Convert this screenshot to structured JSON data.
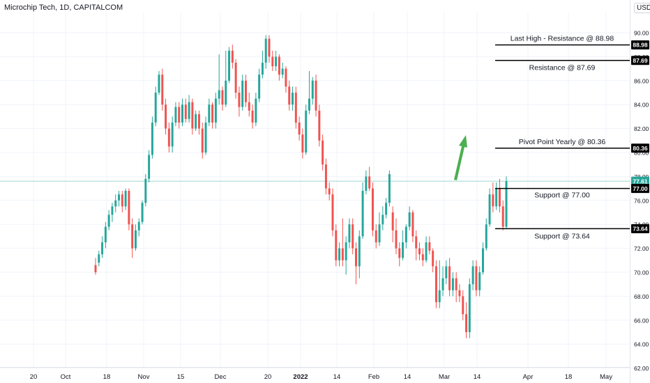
{
  "header": {
    "title": "Microchip Tech, 1D, CAPITALCOM",
    "currency": "USD"
  },
  "colors": {
    "up": "#26a69a",
    "down": "#ef5350",
    "grid": "#f0f3fa",
    "axis_text": "#131722",
    "current_line": "#26a69a",
    "annotation_line": "#000000",
    "arrow": "#4caf50"
  },
  "chart_data": {
    "type": "candlestick",
    "ylim": [
      61.5,
      91.5
    ],
    "y_ticks": [
      "90.00",
      "88.00",
      "86.00",
      "84.00",
      "82.00",
      "80.00",
      "78.00",
      "76.00",
      "74.00",
      "72.00",
      "70.00",
      "68.00",
      "66.00",
      "64.00",
      "62.00"
    ],
    "x_ticks": [
      "20",
      "Oct",
      "18",
      "Nov",
      "15",
      "Dec",
      "20",
      "2022",
      "14",
      "Feb",
      "14",
      "Mar",
      "14",
      "Apr",
      "18",
      "May"
    ],
    "current_price": 77.61,
    "price_labels": [
      "88.98",
      "87.69",
      "80.36",
      "77.61",
      "77.00",
      "73.64"
    ],
    "levels": [
      {
        "label": "Last High - Resistance @ 88.98",
        "value": 88.98,
        "tag": "88.98"
      },
      {
        "label": "Resistance @ 87.69",
        "value": 87.69,
        "tag": "87.69"
      },
      {
        "label": "Pivot Point Yearly @ 80.36",
        "value": 80.36,
        "tag": "80.36"
      },
      {
        "label": "Support @ 77.00",
        "value": 77.0,
        "tag": "77.00"
      },
      {
        "label": "Support @ 73.64",
        "value": 73.64,
        "tag": "73.64"
      }
    ],
    "candles": [
      [
        70.6,
        70.0,
        71.2,
        69.8
      ],
      [
        70.8,
        71.5,
        71.8,
        70.5
      ],
      [
        71.5,
        72.5,
        73.0,
        71.2
      ],
      [
        72.5,
        73.8,
        74.2,
        72.0
      ],
      [
        73.8,
        74.8,
        75.2,
        73.5
      ],
      [
        74.8,
        75.5,
        75.8,
        74.2
      ],
      [
        75.5,
        76.0,
        76.5,
        75.0
      ],
      [
        76.0,
        76.5,
        76.8,
        75.5
      ],
      [
        76.5,
        75.5,
        76.8,
        75.0
      ],
      [
        75.5,
        76.8,
        77.0,
        75.2
      ],
      [
        76.8,
        74.0,
        77.0,
        73.5
      ],
      [
        74.0,
        72.0,
        74.5,
        71.2
      ],
      [
        72.0,
        73.5,
        74.0,
        71.8
      ],
      [
        73.5,
        74.2,
        74.5,
        73.0
      ],
      [
        74.2,
        75.8,
        76.0,
        74.0
      ],
      [
        75.8,
        77.8,
        78.2,
        75.5
      ],
      [
        77.8,
        79.8,
        80.2,
        77.5
      ],
      [
        79.8,
        82.5,
        83.0,
        79.5
      ],
      [
        82.5,
        85.0,
        85.5,
        82.2
      ],
      [
        85.0,
        86.5,
        86.8,
        84.8
      ],
      [
        86.5,
        84.0,
        87.0,
        83.5
      ],
      [
        84.0,
        82.0,
        84.5,
        81.5
      ],
      [
        82.0,
        80.5,
        82.5,
        80.0
      ],
      [
        80.5,
        82.5,
        83.0,
        80.0
      ],
      [
        82.5,
        83.8,
        84.2,
        82.2
      ],
      [
        83.8,
        82.5,
        84.2,
        82.0
      ],
      [
        82.5,
        84.0,
        84.5,
        82.2
      ],
      [
        84.0,
        82.8,
        84.5,
        82.5
      ],
      [
        82.8,
        84.2,
        84.8,
        82.5
      ],
      [
        84.2,
        82.0,
        84.5,
        81.5
      ],
      [
        82.0,
        83.2,
        83.5,
        81.8
      ],
      [
        83.2,
        82.0,
        83.5,
        81.5
      ],
      [
        82.0,
        80.0,
        82.5,
        79.5
      ],
      [
        80.0,
        82.5,
        83.0,
        79.8
      ],
      [
        82.5,
        84.0,
        84.5,
        82.2
      ],
      [
        84.0,
        82.5,
        84.2,
        82.0
      ],
      [
        82.5,
        84.5,
        85.0,
        82.0
      ],
      [
        84.5,
        85.2,
        88.2,
        84.0
      ],
      [
        85.2,
        84.0,
        85.5,
        83.5
      ],
      [
        84.0,
        86.0,
        88.5,
        83.8
      ],
      [
        86.0,
        88.5,
        88.8,
        85.8
      ],
      [
        88.5,
        87.5,
        89.0,
        87.0
      ],
      [
        87.5,
        85.0,
        87.8,
        84.5
      ],
      [
        85.0,
        83.8,
        85.5,
        83.0
      ],
      [
        83.8,
        86.0,
        86.5,
        83.5
      ],
      [
        86.0,
        84.2,
        86.5,
        83.8
      ],
      [
        84.2,
        83.5,
        85.0,
        83.0
      ],
      [
        83.5,
        82.5,
        84.0,
        82.0
      ],
      [
        82.5,
        84.5,
        85.0,
        82.2
      ],
      [
        84.5,
        86.5,
        87.0,
        84.2
      ],
      [
        86.5,
        87.5,
        88.5,
        86.2
      ],
      [
        87.5,
        89.5,
        89.8,
        87.0
      ],
      [
        89.5,
        88.0,
        89.8,
        87.5
      ],
      [
        88.0,
        87.2,
        88.5,
        86.8
      ],
      [
        87.2,
        88.0,
        88.5,
        86.8
      ],
      [
        88.0,
        86.5,
        88.2,
        86.0
      ],
      [
        86.5,
        87.0,
        87.5,
        86.2
      ],
      [
        87.0,
        85.5,
        87.2,
        85.0
      ],
      [
        85.5,
        84.0,
        86.0,
        83.5
      ],
      [
        84.0,
        85.0,
        85.5,
        83.5
      ],
      [
        85.0,
        82.5,
        85.5,
        82.0
      ],
      [
        82.5,
        81.5,
        83.0,
        81.0
      ],
      [
        81.5,
        80.0,
        82.0,
        79.5
      ],
      [
        80.0,
        83.5,
        84.0,
        79.8
      ],
      [
        83.5,
        84.5,
        86.8,
        83.2
      ],
      [
        84.5,
        86.0,
        86.3,
        84.0
      ],
      [
        86.0,
        83.5,
        86.5,
        83.0
      ],
      [
        83.5,
        81.0,
        84.0,
        80.5
      ],
      [
        81.0,
        79.0,
        81.5,
        78.5
      ],
      [
        79.0,
        77.0,
        79.5,
        76.5
      ],
      [
        77.0,
        76.5,
        77.5,
        76.0
      ],
      [
        76.5,
        73.5,
        77.0,
        73.0
      ],
      [
        73.5,
        71.0,
        74.0,
        70.5
      ],
      [
        71.0,
        72.0,
        72.5,
        70.5
      ],
      [
        72.0,
        71.0,
        74.5,
        70.5
      ],
      [
        71.0,
        72.5,
        73.0,
        69.8
      ],
      [
        72.5,
        74.0,
        74.5,
        72.0
      ],
      [
        74.0,
        72.0,
        74.5,
        71.5
      ],
      [
        72.0,
        70.5,
        72.5,
        69.0
      ],
      [
        70.5,
        73.0,
        73.5,
        69.5
      ],
      [
        73.0,
        76.8,
        77.5,
        72.8
      ],
      [
        76.8,
        78.0,
        78.5,
        76.5
      ],
      [
        78.0,
        77.0,
        78.8,
        76.8
      ],
      [
        77.0,
        73.5,
        77.5,
        73.0
      ],
      [
        73.5,
        72.5,
        74.0,
        72.0
      ],
      [
        72.5,
        74.0,
        75.0,
        72.2
      ],
      [
        74.0,
        74.8,
        75.5,
        73.5
      ],
      [
        74.8,
        75.8,
        76.2,
        74.5
      ],
      [
        75.8,
        78.2,
        78.5,
        75.5
      ],
      [
        75.0,
        73.5,
        75.5,
        72.5
      ],
      [
        73.5,
        72.0,
        74.5,
        71.5
      ],
      [
        72.0,
        71.2,
        72.5,
        70.5
      ],
      [
        71.2,
        72.5,
        73.5,
        71.0
      ],
      [
        72.5,
        73.8,
        74.0,
        72.0
      ],
      [
        73.8,
        75.0,
        75.5,
        73.5
      ],
      [
        75.0,
        73.0,
        75.2,
        72.5
      ],
      [
        73.0,
        72.0,
        73.5,
        71.0
      ],
      [
        72.0,
        71.5,
        72.5,
        71.0
      ],
      [
        71.5,
        71.0,
        72.0,
        70.5
      ],
      [
        71.0,
        72.5,
        73.0,
        70.8
      ],
      [
        72.5,
        71.8,
        73.0,
        71.5
      ],
      [
        71.8,
        70.5,
        72.0,
        70.0
      ],
      [
        70.5,
        67.5,
        71.0,
        67.0
      ],
      [
        67.5,
        68.5,
        71.0,
        67.0
      ],
      [
        68.5,
        69.5,
        70.5,
        68.0
      ],
      [
        69.5,
        70.5,
        71.0,
        69.0
      ],
      [
        70.5,
        68.5,
        71.2,
        68.0
      ],
      [
        68.5,
        69.5,
        70.0,
        68.0
      ],
      [
        69.5,
        68.5,
        70.0,
        67.5
      ],
      [
        68.5,
        68.0,
        69.0,
        67.5
      ],
      [
        68.0,
        66.5,
        68.5,
        66.0
      ],
      [
        66.5,
        65.0,
        67.5,
        64.5
      ],
      [
        65.0,
        69.0,
        69.5,
        64.5
      ],
      [
        69.0,
        70.5,
        71.0,
        68.5
      ],
      [
        70.5,
        68.5,
        71.0,
        68.0
      ],
      [
        68.5,
        70.0,
        70.5,
        68.0
      ],
      [
        70.0,
        72.0,
        72.5,
        69.8
      ],
      [
        72.0,
        74.0,
        74.5,
        71.8
      ],
      [
        74.0,
        76.5,
        77.0,
        73.8
      ],
      [
        76.5,
        75.5,
        77.5,
        75.0
      ],
      [
        75.5,
        77.0,
        77.5,
        75.2
      ],
      [
        77.0,
        75.5,
        77.8,
        75.0
      ],
      [
        75.5,
        73.8,
        76.0,
        73.5
      ],
      [
        73.8,
        77.6,
        78.0,
        73.6
      ]
    ]
  }
}
